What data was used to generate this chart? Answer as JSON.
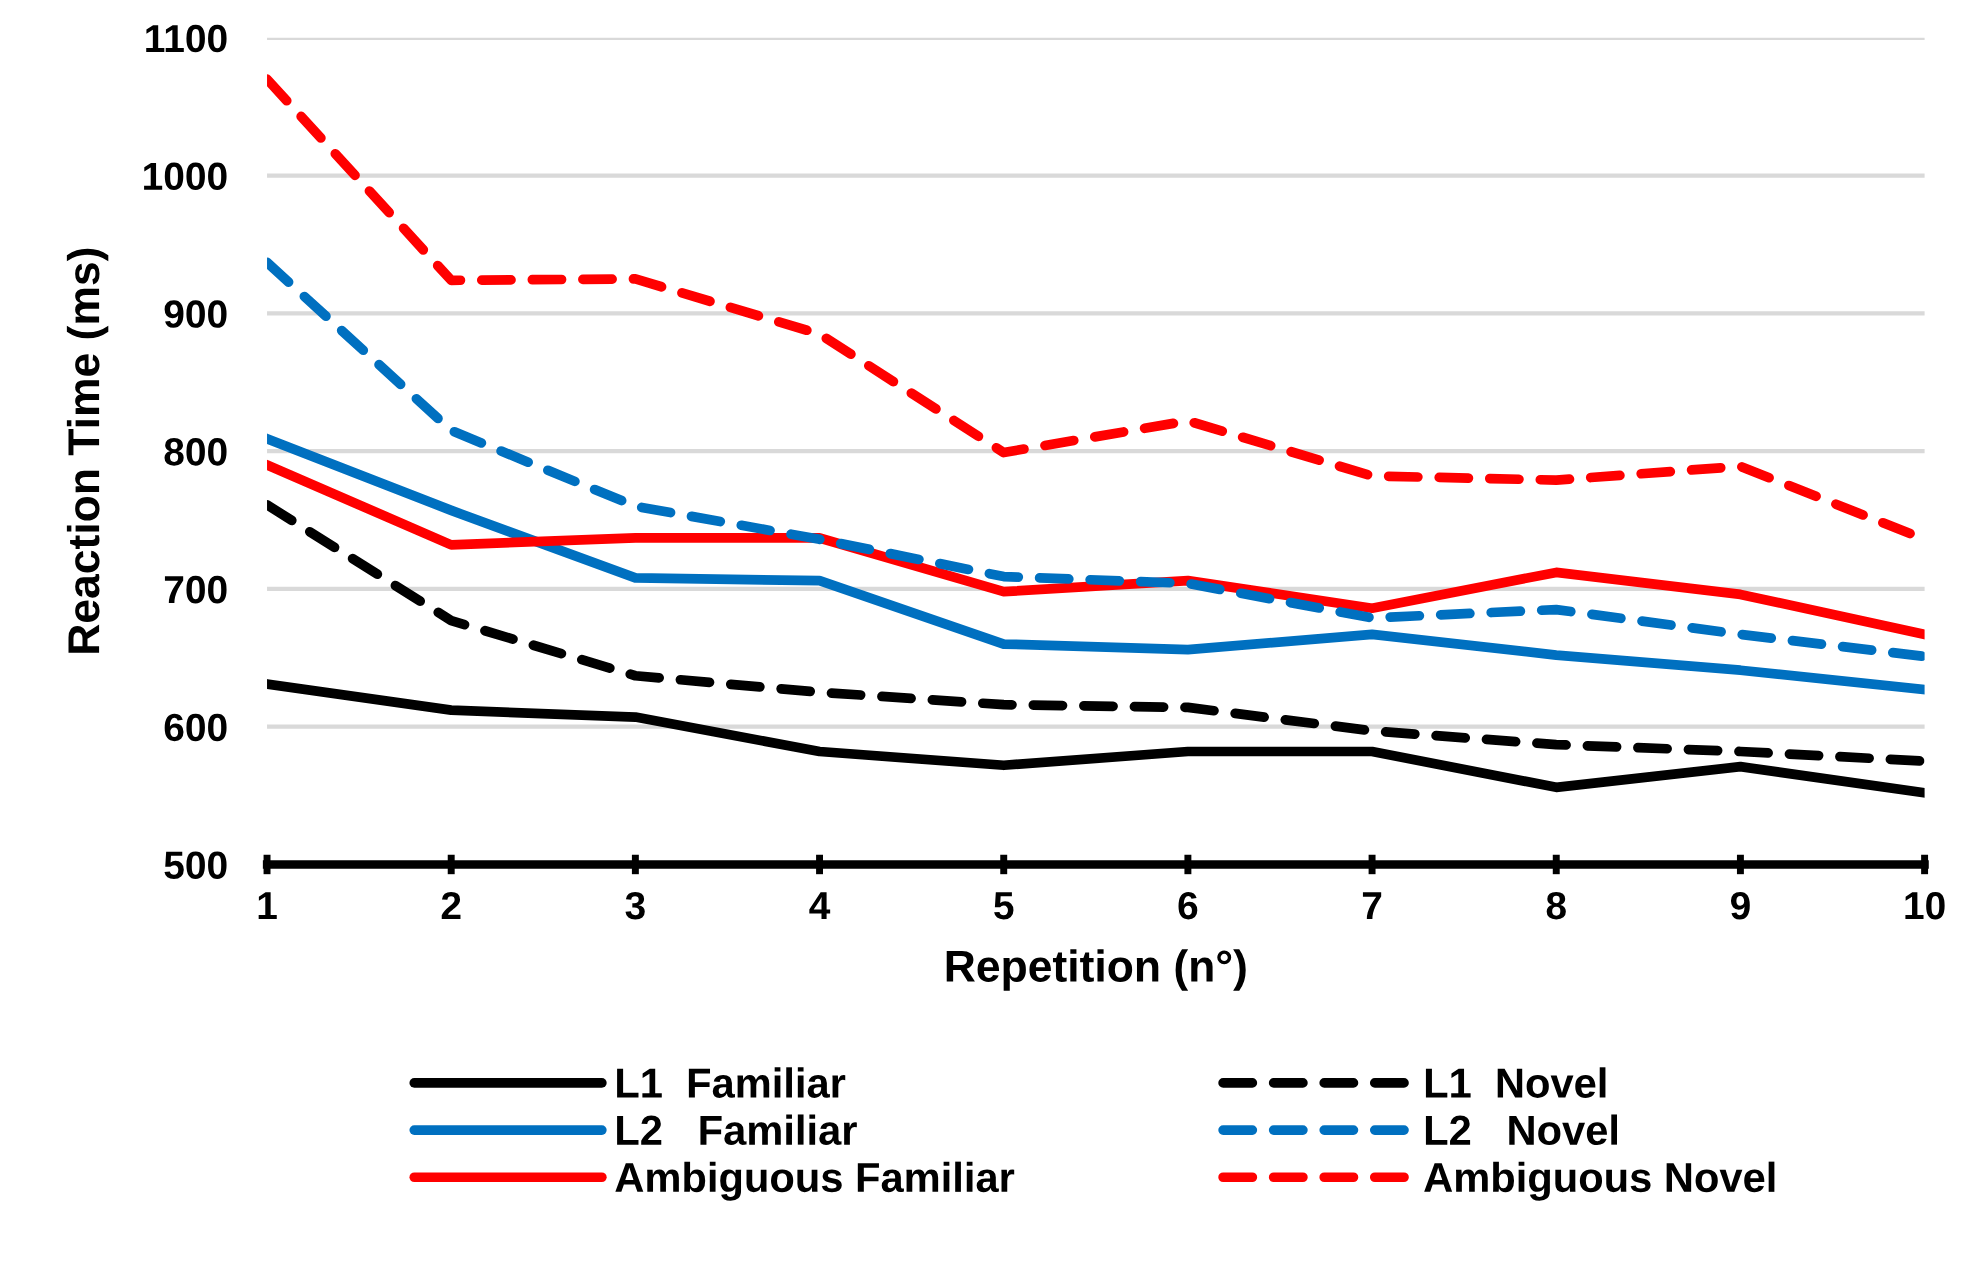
{
  "chart_data": {
    "type": "line",
    "xlabel": "Repetition (n°)",
    "ylabel": "Reaction Time (ms)",
    "x": [
      1,
      2,
      3,
      4,
      5,
      6,
      7,
      8,
      9,
      10
    ],
    "xlim": [
      1,
      10
    ],
    "xticks": [
      1,
      2,
      3,
      4,
      5,
      6,
      7,
      8,
      9,
      10
    ],
    "ylim": [
      500,
      1100
    ],
    "yticks": [
      500,
      600,
      700,
      800,
      900,
      1000,
      1100
    ],
    "grid": "y",
    "legend": "bottom",
    "marker": "none",
    "series": [
      {
        "name": "L1  Familiar",
        "color": "#000000",
        "line_style": "solid",
        "values": [
          631,
          612,
          607,
          582,
          572,
          582,
          582,
          556,
          571,
          552
        ]
      },
      {
        "name": "L2   Familiar",
        "color": "#0070c0",
        "line_style": "solid",
        "values": [
          809,
          757,
          708,
          706,
          660,
          656,
          667,
          652,
          641,
          627
        ]
      },
      {
        "name": "Ambiguous Familiar",
        "color": "#ff0000",
        "line_style": "solid",
        "values": [
          790,
          732,
          737,
          737,
          698,
          706,
          686,
          712,
          696,
          667
        ]
      },
      {
        "name": "L1  Novel",
        "color": "#000000",
        "line_style": "dashed",
        "values": [
          761,
          677,
          637,
          625,
          616,
          614,
          597,
          587,
          582,
          575
        ]
      },
      {
        "name": "L2   Novel",
        "color": "#0070c0",
        "line_style": "dashed",
        "values": [
          937,
          815,
          760,
          736,
          709,
          704,
          679,
          685,
          667,
          651
        ]
      },
      {
        "name": "Ambiguous Novel",
        "color": "#ff0000",
        "line_style": "dashed",
        "values": [
          1070,
          924,
          925,
          885,
          799,
          822,
          782,
          779,
          789,
          736
        ]
      }
    ]
  }
}
